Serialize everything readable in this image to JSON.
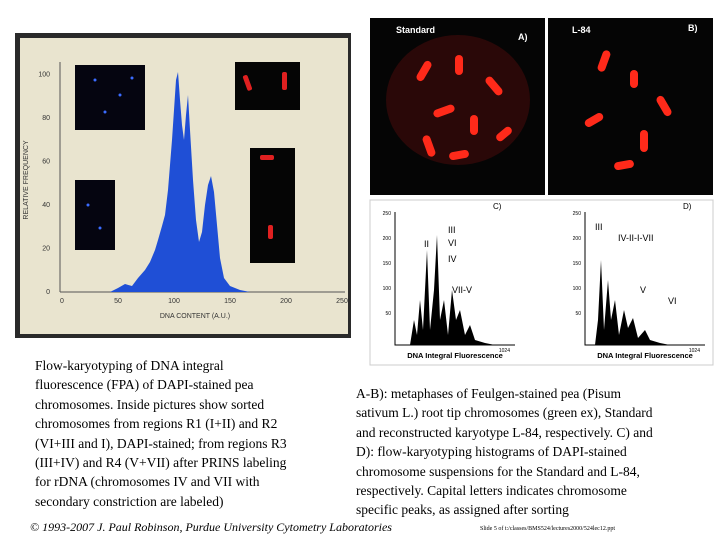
{
  "left_figure": {
    "y_axis_label": "RELATIVE FREQUENCY",
    "x_axis_label": "DNA CONTENT (A.U.)",
    "yticks": [
      "0",
      "20",
      "40",
      "60",
      "80",
      "100"
    ],
    "xticks": [
      "0",
      "50",
      "100",
      "150",
      "200",
      "250"
    ]
  },
  "right_figure": {
    "panel_a": {
      "title": "Standard",
      "label": "A)"
    },
    "panel_b": {
      "title": "L-84",
      "label": "B)"
    },
    "panel_c": {
      "label": "C)",
      "peaks": [
        "III",
        "II",
        "VI",
        "IV",
        "VII-V"
      ],
      "yticks": [
        "250",
        "200",
        "150",
        "100",
        "50"
      ],
      "x_end": "1024",
      "x_axis_label": "DNA Integral Fluorescence"
    },
    "panel_d": {
      "label": "D)",
      "peaks": [
        "III",
        "IV-II-I-VII",
        "V",
        "VI"
      ],
      "yticks": [
        "250",
        "200",
        "150",
        "100",
        "50"
      ],
      "x_end": "1024",
      "x_axis_label": "DNA Integral Fluorescence"
    }
  },
  "left_caption": [
    "Flow-karyotyping of DNA integral",
    "fluorescence (FPA) of DAPI-stained pea",
    "chromosomes. Inside pictures show sorted",
    "chromosomes from regions R1 (I+II) and R2",
    "(VI+III and I), DAPI-stained; from regions R3",
    "(III+IV) and R4 (V+VII) after PRINS labeling",
    "for rDNA (chromosomes IV and VII with",
    "secondary constriction are labeled)"
  ],
  "right_caption": [
    "A-B): metaphases of Feulgen-stained pea (Pisum",
    "sativum L.) root tip chromosomes (green ex), Standard",
    "and reconstructed karyotype L-84, respectively. C) and",
    "D): flow-karyotyping histograms of DAPI-stained",
    "chromosome suspensions for the Standard and L-84,",
    "respectively. Capital letters indicates chromosome",
    "specific peaks, as assigned after sorting"
  ],
  "footer": "© 1993-2007 J. Paul Robinson, Purdue University Cytometry Laboratories",
  "slide_ref": "Slide 5 of t:/classes/BMS524/lectures2000/524lec12.ppt"
}
